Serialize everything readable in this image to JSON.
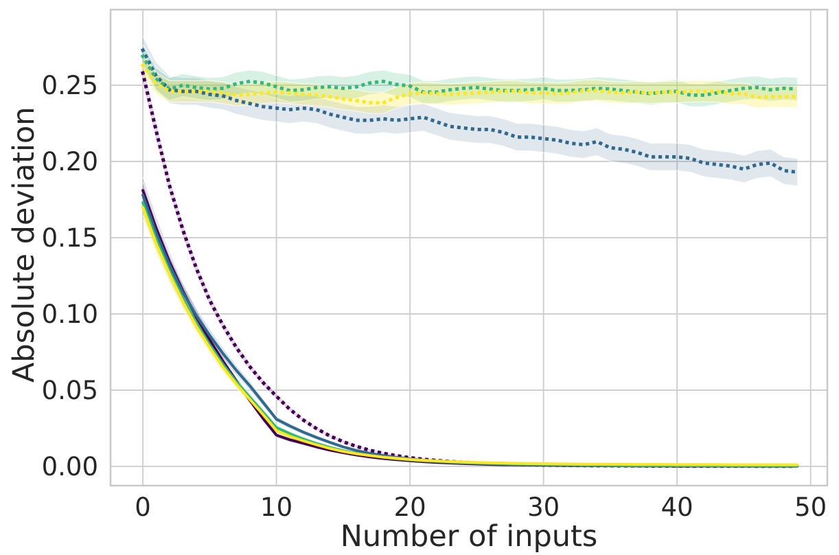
{
  "figure": {
    "background": "#ffffff"
  },
  "colors": {
    "purple": "#440154",
    "blue": "#31688e",
    "green": "#35b779",
    "yellow": "#fde725",
    "grid": "#cdcdcd",
    "spine": "#c9c9c9",
    "text": "#262626",
    "band_edge": "#ffffff"
  },
  "chart_data": {
    "type": "line",
    "title": "",
    "xlabel": "Number of inputs",
    "ylabel": "Absolute deviation",
    "legend": "none",
    "grid": true,
    "xlim": [
      -2.42,
      51.25
    ],
    "ylim": [
      -0.0126,
      0.2996
    ],
    "x_ticks": [
      0,
      10,
      20,
      30,
      40,
      50
    ],
    "x_tick_labels": [
      "0",
      "10",
      "20",
      "30",
      "40",
      "50"
    ],
    "y_ticks": [
      0.0,
      0.05,
      0.1,
      0.15,
      0.2,
      0.25
    ],
    "y_tick_labels": [
      "0.00",
      "0.05",
      "0.10",
      "0.15",
      "0.20",
      "0.25"
    ],
    "x": [
      0,
      1,
      2,
      3,
      4,
      5,
      6,
      7,
      8,
      9,
      10,
      11,
      12,
      13,
      14,
      15,
      16,
      17,
      18,
      19,
      20,
      21,
      22,
      23,
      24,
      25,
      26,
      27,
      28,
      29,
      30,
      31,
      32,
      33,
      34,
      35,
      36,
      37,
      38,
      39,
      40,
      41,
      42,
      43,
      44,
      45,
      46,
      47,
      48,
      49
    ],
    "series": [
      {
        "name": "solid-purple",
        "color": "#440154",
        "style": "solid",
        "width": 4,
        "band_rel": 0.045,
        "band_abs": 0.0006,
        "band_opacity": 0.18,
        "values": [
          0.181,
          0.156,
          0.134,
          0.115,
          0.098,
          0.083,
          0.069,
          0.056,
          0.0435,
          0.0315,
          0.0205,
          0.0175,
          0.0152,
          0.0128,
          0.0107,
          0.009,
          0.0075,
          0.0062,
          0.0052,
          0.0044,
          0.0037,
          0.0031,
          0.0026,
          0.0022,
          0.0019,
          0.0016,
          0.0013,
          0.0011,
          0.001,
          0.0009,
          0.0008,
          0.0007,
          0.0006,
          0.0005,
          0.0005,
          0.0004,
          0.0004,
          0.0003,
          0.0003,
          0.0003,
          0.0002,
          0.0002,
          0.0002,
          0.0002,
          0.0002,
          0.0001,
          0.0001,
          0.0001,
          0.0001,
          0.0001
        ]
      },
      {
        "name": "solid-blue",
        "color": "#31688e",
        "style": "solid",
        "width": 4,
        "band_rel": 0.045,
        "band_abs": 0.0006,
        "band_opacity": 0.18,
        "values": [
          0.178,
          0.153,
          0.132,
          0.114,
          0.099,
          0.086,
          0.074,
          0.063,
          0.053,
          0.042,
          0.031,
          0.0265,
          0.0225,
          0.019,
          0.0158,
          0.0128,
          0.0104,
          0.0086,
          0.0071,
          0.0059,
          0.0049,
          0.0041,
          0.0035,
          0.003,
          0.0026,
          0.0022,
          0.0019,
          0.0016,
          0.0014,
          0.0012,
          0.0011,
          0.001,
          0.0009,
          0.0008,
          0.0007,
          0.0006,
          0.0006,
          0.0005,
          0.0005,
          0.0004,
          0.0004,
          0.0004,
          0.0003,
          0.0003,
          0.0003,
          0.0003,
          0.0002,
          0.0002,
          0.0002,
          0.0002
        ]
      },
      {
        "name": "solid-green",
        "color": "#35b779",
        "style": "solid",
        "width": 4,
        "band_rel": 0.045,
        "band_abs": 0.0006,
        "band_opacity": 0.18,
        "values": [
          0.173,
          0.149,
          0.128,
          0.11,
          0.094,
          0.08,
          0.067,
          0.0555,
          0.0455,
          0.0355,
          0.0255,
          0.0215,
          0.018,
          0.015,
          0.0125,
          0.0103,
          0.0086,
          0.0072,
          0.006,
          0.005,
          0.0043,
          0.0037,
          0.0032,
          0.0027,
          0.0024,
          0.0021,
          0.0018,
          0.0016,
          0.0014,
          0.0013,
          0.0011,
          0.001,
          0.0009,
          0.0008,
          0.0008,
          0.0007,
          0.0006,
          0.0006,
          0.0005,
          0.0005,
          0.0005,
          0.0004,
          0.0004,
          0.0004,
          0.0004,
          0.0003,
          0.0003,
          0.0003,
          0.0003,
          0.0003
        ]
      },
      {
        "name": "solid-yellow",
        "color": "#fde725",
        "style": "solid",
        "width": 4,
        "band_rel": 0.045,
        "band_abs": 0.0006,
        "band_opacity": 0.22,
        "values": [
          0.17,
          0.146,
          0.126,
          0.108,
          0.092,
          0.078,
          0.065,
          0.054,
          0.044,
          0.034,
          0.0235,
          0.0198,
          0.0168,
          0.0142,
          0.0118,
          0.0098,
          0.0083,
          0.0071,
          0.0061,
          0.0053,
          0.0046,
          0.004,
          0.0036,
          0.0032,
          0.0029,
          0.0026,
          0.0024,
          0.0022,
          0.002,
          0.0019,
          0.0018,
          0.0017,
          0.0016,
          0.0015,
          0.0015,
          0.0014,
          0.0014,
          0.0013,
          0.0013,
          0.0013,
          0.0012,
          0.0012,
          0.0012,
          0.0012,
          0.0011,
          0.0011,
          0.0011,
          0.0011,
          0.0011,
          0.0011
        ]
      },
      {
        "name": "dotted-purple",
        "color": "#440154",
        "style": "dotted",
        "width": 5,
        "band_rel": 0.025,
        "band_abs": 0.0006,
        "band_opacity": 0.16,
        "values": [
          0.258,
          0.22,
          0.184,
          0.155,
          0.13,
          0.109,
          0.0925,
          0.078,
          0.0655,
          0.055,
          0.046,
          0.0375,
          0.0305,
          0.0248,
          0.02,
          0.0162,
          0.0131,
          0.0106,
          0.0086,
          0.007,
          0.0057,
          0.0047,
          0.0039,
          0.0032,
          0.0027,
          0.0022,
          0.0018,
          0.0015,
          0.0013,
          0.0011,
          0.0009,
          0.0008,
          0.0007,
          0.0006,
          0.0005,
          0.0005,
          0.0004,
          0.0004,
          0.0003,
          0.0003,
          0.0003,
          0.0002,
          0.0002,
          0.0002,
          0.0002,
          0.0002,
          0.0001,
          0.0001,
          0.0001,
          0.0001
        ]
      },
      {
        "name": "dotted-blue",
        "color": "#31688e",
        "style": "dotted",
        "width": 5,
        "band_rel": 0,
        "band_abs": 0.009,
        "band_opacity": 0.15,
        "values": [
          0.273,
          0.256,
          0.247,
          0.246,
          0.246,
          0.244,
          0.243,
          0.24,
          0.238,
          0.236,
          0.235,
          0.234,
          0.235,
          0.234,
          0.231,
          0.229,
          0.227,
          0.227,
          0.228,
          0.227,
          0.228,
          0.229,
          0.226,
          0.223,
          0.222,
          0.221,
          0.221,
          0.219,
          0.216,
          0.216,
          0.215,
          0.214,
          0.212,
          0.211,
          0.213,
          0.209,
          0.208,
          0.206,
          0.203,
          0.203,
          0.203,
          0.202,
          0.199,
          0.198,
          0.197,
          0.195,
          0.198,
          0.199,
          0.194,
          0.193
        ]
      },
      {
        "name": "dotted-green",
        "color": "#35b779",
        "style": "dotted",
        "width": 5,
        "band_rel": 0,
        "band_abs": 0.0075,
        "band_opacity": 0.2,
        "values": [
          0.269,
          0.254,
          0.2475,
          0.25,
          0.2485,
          0.2475,
          0.248,
          0.251,
          0.2525,
          0.2515,
          0.249,
          0.2465,
          0.247,
          0.2485,
          0.249,
          0.248,
          0.249,
          0.2515,
          0.2525,
          0.2505,
          0.2495,
          0.2455,
          0.2455,
          0.247,
          0.248,
          0.2485,
          0.2475,
          0.2465,
          0.2465,
          0.247,
          0.248,
          0.2465,
          0.2465,
          0.247,
          0.248,
          0.2475,
          0.2465,
          0.2455,
          0.2445,
          0.2455,
          0.246,
          0.2435,
          0.2435,
          0.245,
          0.2465,
          0.248,
          0.2485,
          0.247,
          0.248,
          0.2475
        ]
      },
      {
        "name": "dotted-yellow",
        "color": "#fde725",
        "style": "dotted",
        "width": 5,
        "band_rel": 0,
        "band_abs": 0.007,
        "band_opacity": 0.25,
        "values": [
          0.263,
          0.251,
          0.246,
          0.246,
          0.246,
          0.246,
          0.245,
          0.2435,
          0.244,
          0.245,
          0.2455,
          0.245,
          0.244,
          0.2435,
          0.2425,
          0.241,
          0.24,
          0.2385,
          0.2385,
          0.242,
          0.2445,
          0.245,
          0.2445,
          0.244,
          0.2445,
          0.245,
          0.2455,
          0.246,
          0.246,
          0.245,
          0.245,
          0.2445,
          0.245,
          0.2465,
          0.2465,
          0.2455,
          0.245,
          0.2455,
          0.245,
          0.2455,
          0.2455,
          0.246,
          0.246,
          0.246,
          0.2445,
          0.2445,
          0.242,
          0.2425,
          0.2425,
          0.2425
        ]
      }
    ]
  }
}
